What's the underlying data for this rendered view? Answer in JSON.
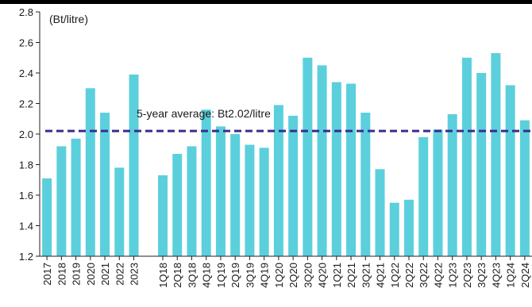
{
  "chart_data": {
    "type": "bar",
    "unit_label": "(Bt/litre)",
    "ylim": [
      1.2,
      2.8
    ],
    "yticks": [
      "1.2",
      "1.4",
      "1.6",
      "1.8",
      "2.0",
      "2.2",
      "2.4",
      "2.6",
      "2.8"
    ],
    "grid": false,
    "bar_color": "#5bd0dc",
    "categories": [
      "2017",
      "2018",
      "2019",
      "2020",
      "2021",
      "2022",
      "2023",
      "",
      "1Q18",
      "2Q18",
      "3Q18",
      "4Q18",
      "1Q19",
      "2Q19",
      "3Q19",
      "4Q19",
      "1Q20",
      "2Q20",
      "3Q20",
      "4Q20",
      "1Q21",
      "2Q21",
      "3Q21",
      "4Q21",
      "1Q22",
      "2Q22",
      "3Q22",
      "4Q22",
      "1Q23",
      "2Q23",
      "3Q23",
      "4Q23",
      "1Q24",
      "2Q24"
    ],
    "values": [
      1.71,
      1.92,
      1.97,
      2.3,
      2.14,
      1.78,
      2.39,
      null,
      1.73,
      1.87,
      1.92,
      2.16,
      2.05,
      2.0,
      1.93,
      1.91,
      2.19,
      2.12,
      2.5,
      2.45,
      2.34,
      2.33,
      2.14,
      1.77,
      1.55,
      1.57,
      1.98,
      2.03,
      2.13,
      2.5,
      2.4,
      2.53,
      2.32,
      2.09
    ],
    "average_line": {
      "label": "5-year average: Bt2.02/litre",
      "value": 2.02,
      "color": "#3b2d8f"
    }
  }
}
